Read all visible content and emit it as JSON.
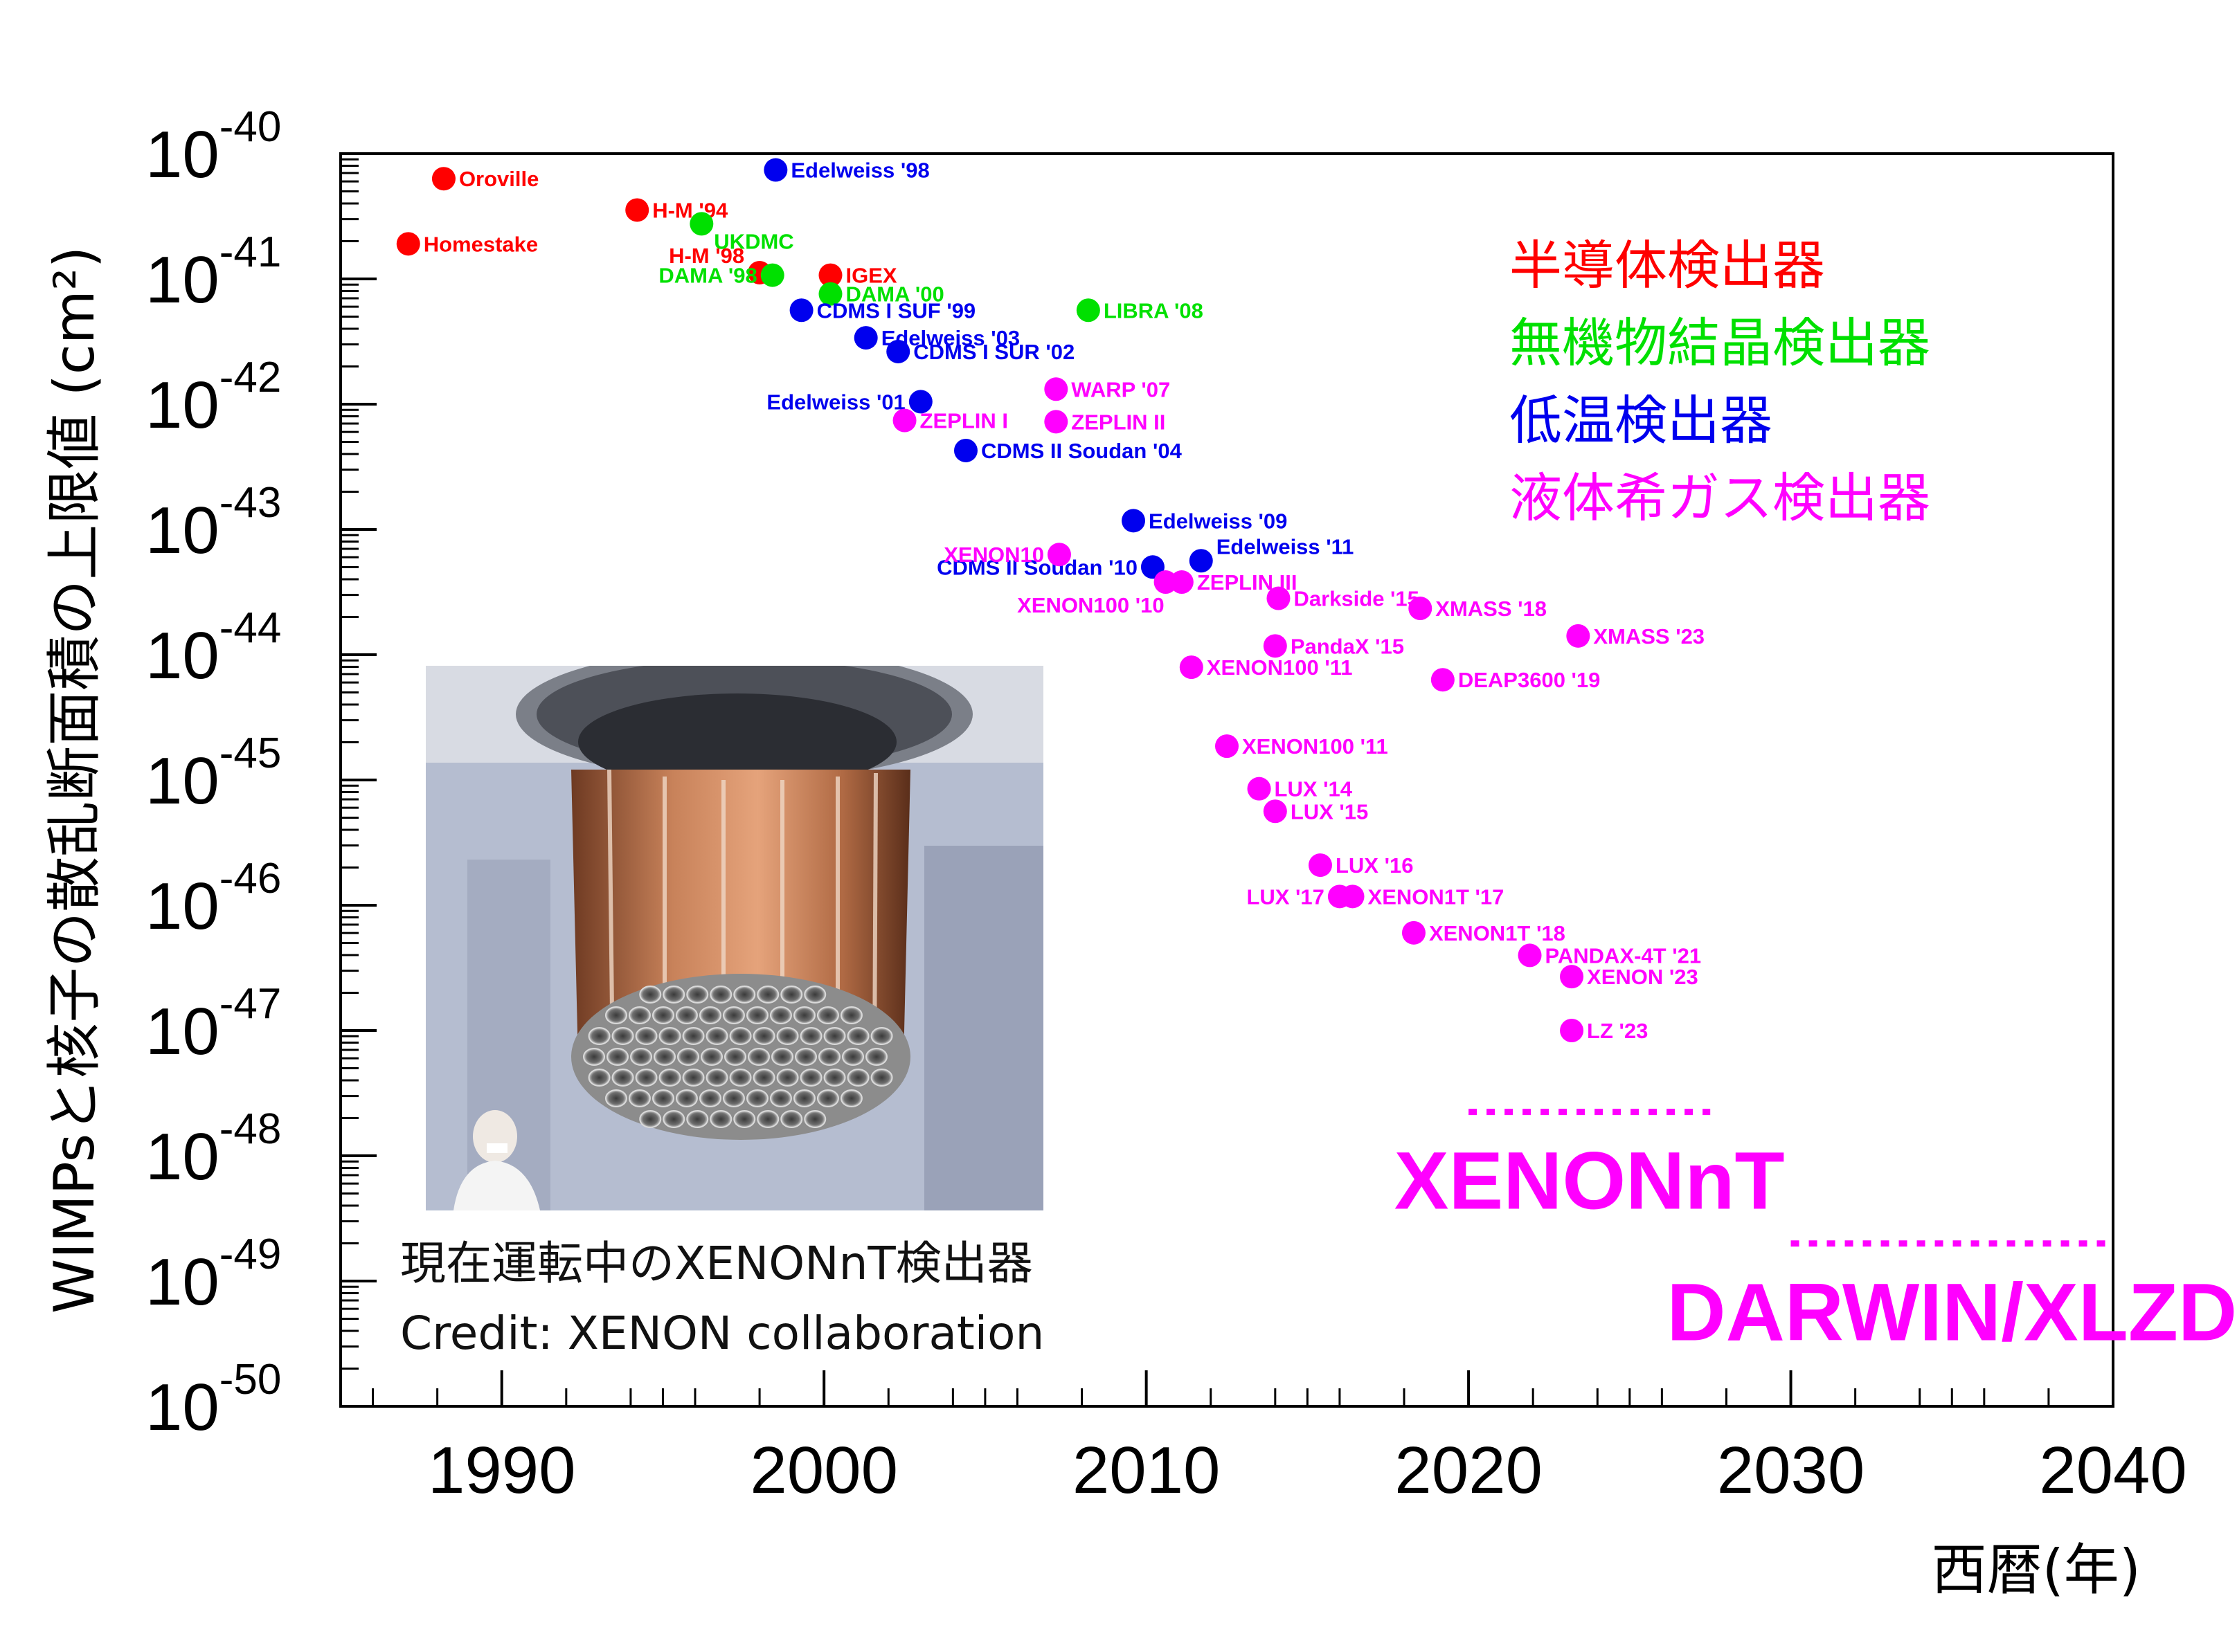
{
  "chart_data": {
    "type": "scatter",
    "title": "",
    "xlabel": "西暦(年)",
    "ylabel": "WIMPsと核子の散乱断面積の上限値 (cm²)",
    "xlim": [
      1985,
      2040
    ],
    "ylog": true,
    "ylim_exp": [
      -50,
      -40
    ],
    "x_ticks": [
      "1990",
      "2000",
      "2010",
      "2020",
      "2030",
      "2040"
    ],
    "y_ticks": [
      {
        "base": "10",
        "exp": "-40"
      },
      {
        "base": "10",
        "exp": "-41"
      },
      {
        "base": "10",
        "exp": "-42"
      },
      {
        "base": "10",
        "exp": "-43"
      },
      {
        "base": "10",
        "exp": "-44"
      },
      {
        "base": "10",
        "exp": "-45"
      },
      {
        "base": "10",
        "exp": "-46"
      },
      {
        "base": "10",
        "exp": "-47"
      },
      {
        "base": "10",
        "exp": "-48"
      },
      {
        "base": "10",
        "exp": "-49"
      },
      {
        "base": "10",
        "exp": "-50"
      }
    ],
    "grid": false,
    "series_colors": {
      "semiconductor": "#ff0000",
      "crystal": "#00e000",
      "cryogenic": "#0000ee",
      "liquid": "#ff00ff"
    },
    "legend": [
      {
        "key": "semiconductor",
        "label": "半導体検出器"
      },
      {
        "key": "crystal",
        "label": "無機物結晶検出器"
      },
      {
        "key": "cryogenic",
        "label": "低温検出器"
      },
      {
        "key": "liquid",
        "label": "液体希ガス検出器"
      }
    ],
    "points": [
      {
        "label": "Oroville",
        "x": 1988.2,
        "y": -40.2,
        "series": "semiconductor",
        "pos": "r"
      },
      {
        "label": "Homestake",
        "x": 1987.1,
        "y": -40.72,
        "series": "semiconductor",
        "pos": "r"
      },
      {
        "label": "H-M '94",
        "x": 1994.2,
        "y": -40.45,
        "series": "semiconductor",
        "pos": "r"
      },
      {
        "label": "H-M '98",
        "x": 1998,
        "y": -40.95,
        "series": "semiconductor",
        "pos": "tl"
      },
      {
        "label": "IGEX",
        "x": 2000.2,
        "y": -40.97,
        "series": "semiconductor",
        "pos": "r"
      },
      {
        "label": "UKDMC",
        "x": 1996.2,
        "y": -40.56,
        "series": "crystal",
        "pos": "br"
      },
      {
        "label": "DAMA '98",
        "x": 1998.4,
        "y": -40.97,
        "series": "crystal",
        "pos": "l"
      },
      {
        "label": "DAMA '00",
        "x": 2000.2,
        "y": -41.12,
        "series": "crystal",
        "pos": "r"
      },
      {
        "label": "LIBRA '08",
        "x": 2008.2,
        "y": -41.25,
        "series": "crystal",
        "pos": "r"
      },
      {
        "label": "Edelweiss '98",
        "x": 1998.5,
        "y": -40.13,
        "series": "cryogenic",
        "pos": "r"
      },
      {
        "label": "CDMS I SUF '99",
        "x": 1999.3,
        "y": -41.25,
        "series": "cryogenic",
        "pos": "r"
      },
      {
        "label": "Edelweiss '03",
        "x": 2001.3,
        "y": -41.47,
        "series": "cryogenic",
        "pos": "r"
      },
      {
        "label": "CDMS I SUR '02",
        "x": 2002.3,
        "y": -41.58,
        "series": "cryogenic",
        "pos": "r"
      },
      {
        "label": "Edelweiss '01",
        "x": 2003,
        "y": -41.98,
        "series": "cryogenic",
        "pos": "l"
      },
      {
        "label": "CDMS II Soudan '04",
        "x": 2004.4,
        "y": -42.37,
        "series": "cryogenic",
        "pos": "r"
      },
      {
        "label": "Edelweiss '09",
        "x": 2009.6,
        "y": -42.93,
        "series": "cryogenic",
        "pos": "r"
      },
      {
        "label": "CDMS II Soudan '10",
        "x": 2010.2,
        "y": -43.3,
        "series": "cryogenic",
        "pos": "l"
      },
      {
        "label": "Edelweiss '11",
        "x": 2011.7,
        "y": -43.25,
        "series": "cryogenic",
        "pos": "tr"
      },
      {
        "label": "WARP '07",
        "x": 2007.2,
        "y": -41.88,
        "series": "liquid",
        "pos": "r"
      },
      {
        "label": "ZEPLIN I",
        "x": 2002.5,
        "y": -42.13,
        "series": "liquid",
        "pos": "r"
      },
      {
        "label": "ZEPLIN II",
        "x": 2007.2,
        "y": -42.14,
        "series": "liquid",
        "pos": "r"
      },
      {
        "label": "XENON10",
        "x": 2007.3,
        "y": -43.2,
        "series": "liquid",
        "pos": "l"
      },
      {
        "label": "XENON100 '10",
        "x": 2010.6,
        "y": -43.42,
        "series": "liquid",
        "pos": "bl"
      },
      {
        "label": "ZEPLIN III",
        "x": 2011.1,
        "y": -43.42,
        "series": "liquid",
        "pos": "r"
      },
      {
        "label": "Darkside '15",
        "x": 2014.1,
        "y": -43.55,
        "series": "liquid",
        "pos": "r"
      },
      {
        "label": "XMASS '18",
        "x": 2018.5,
        "y": -43.63,
        "series": "liquid",
        "pos": "r"
      },
      {
        "label": "XMASS '23",
        "x": 2023.4,
        "y": -43.85,
        "series": "liquid",
        "pos": "r"
      },
      {
        "label": "PandaX '15",
        "x": 2014,
        "y": -43.93,
        "series": "liquid",
        "pos": "r"
      },
      {
        "label": "XENON100 '11",
        "x": 2011.4,
        "y": -44.1,
        "series": "liquid",
        "pos": "r"
      },
      {
        "label": "DEAP3600 '19",
        "x": 2019.2,
        "y": -44.2,
        "series": "liquid",
        "pos": "r"
      },
      {
        "label": "XENON100 '11",
        "x": 2012.5,
        "y": -44.73,
        "series": "liquid",
        "pos": "r"
      },
      {
        "label": "LUX '14",
        "x": 2013.5,
        "y": -45.07,
        "series": "liquid",
        "pos": "r"
      },
      {
        "label": "LUX '15",
        "x": 2014,
        "y": -45.25,
        "series": "liquid",
        "pos": "r"
      },
      {
        "label": "LUX '16",
        "x": 2015.4,
        "y": -45.68,
        "series": "liquid",
        "pos": "r"
      },
      {
        "label": "LUX '17",
        "x": 2016,
        "y": -45.93,
        "series": "liquid",
        "pos": "l"
      },
      {
        "label": "XENON1T '17",
        "x": 2016.4,
        "y": -45.93,
        "series": "liquid",
        "pos": "r"
      },
      {
        "label": "XENON1T '18",
        "x": 2018.3,
        "y": -46.22,
        "series": "liquid",
        "pos": "r"
      },
      {
        "label": "PANDAX-4T '21",
        "x": 2021.9,
        "y": -46.4,
        "series": "liquid",
        "pos": "r"
      },
      {
        "label": "XENON '23",
        "x": 2023.2,
        "y": -46.57,
        "series": "liquid",
        "pos": "r"
      },
      {
        "label": "LZ '23",
        "x": 2023.2,
        "y": -47.0,
        "series": "liquid",
        "pos": "r"
      }
    ],
    "projections": [
      {
        "label": "XENONnT",
        "x_start": 2020,
        "x_end": 2027.5,
        "y": -47.65
      },
      {
        "label": "DARWIN/XLZD",
        "x_start": 2030,
        "x_end": 2040,
        "y": -48.7
      }
    ]
  },
  "photo": {
    "caption_line1": "現在運転中のXENONnT検出器",
    "caption_line2": "Credit: XENON collaboration"
  }
}
